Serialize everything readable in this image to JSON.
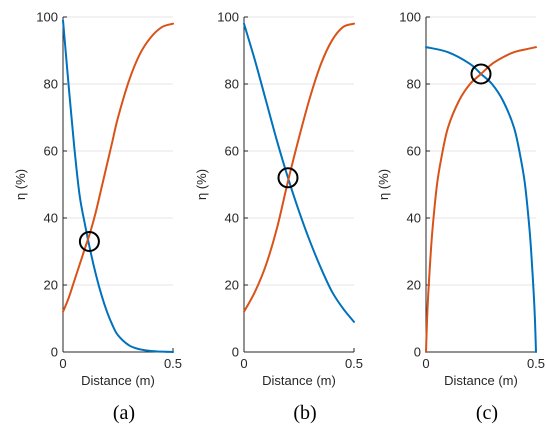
{
  "figure": {
    "colors": {
      "blue": "#0072BD",
      "orange": "#D95319",
      "axis": "#262626",
      "grid": "#E6E6E6",
      "marker": "#000000"
    }
  },
  "chart_data": [
    {
      "type": "line",
      "panel_label": "(a)",
      "xlabel": "Distance (m)",
      "ylabel": "η (%)",
      "xlim": [
        0,
        0.5
      ],
      "ylim": [
        0,
        100
      ],
      "xticks": [
        0,
        0.5
      ],
      "xtick_labels": [
        "0",
        "0.5"
      ],
      "yticks": [
        0,
        20,
        40,
        60,
        80,
        100
      ],
      "ytick_labels": [
        "0",
        "20",
        "40",
        "60",
        "80",
        "100"
      ],
      "grid": "horizontal",
      "series": [
        {
          "color": "#0072BD",
          "x": [
            0,
            0.025,
            0.05,
            0.075,
            0.1,
            0.125,
            0.15,
            0.175,
            0.2,
            0.225,
            0.25,
            0.3,
            0.35,
            0.4,
            0.45,
            0.5
          ],
          "y": [
            99,
            80,
            62,
            47,
            38,
            30,
            23,
            17,
            12,
            8,
            5,
            2,
            0.8,
            0.3,
            0.1,
            0
          ]
        },
        {
          "color": "#D95319",
          "x": [
            0,
            0.025,
            0.05,
            0.075,
            0.1,
            0.125,
            0.15,
            0.175,
            0.2,
            0.225,
            0.25,
            0.3,
            0.35,
            0.4,
            0.45,
            0.5
          ],
          "y": [
            12,
            16,
            21,
            26,
            31,
            36,
            42,
            49,
            56,
            63,
            70,
            81,
            89,
            94,
            97,
            98
          ]
        }
      ],
      "markers": [
        {
          "x": 0.12,
          "y": 33
        }
      ]
    },
    {
      "type": "line",
      "panel_label": "(b)",
      "xlabel": "Distance (m)",
      "ylabel": "η (%)",
      "xlim": [
        0,
        0.5
      ],
      "ylim": [
        0,
        100
      ],
      "xticks": [
        0,
        0.5
      ],
      "xtick_labels": [
        "0",
        "0.5"
      ],
      "yticks": [
        0,
        20,
        40,
        60,
        80,
        100
      ],
      "ytick_labels": [
        "0",
        "20",
        "40",
        "60",
        "80",
        "100"
      ],
      "grid": "horizontal",
      "series": [
        {
          "color": "#0072BD",
          "x": [
            0,
            0.05,
            0.1,
            0.15,
            0.2,
            0.25,
            0.3,
            0.35,
            0.4,
            0.45,
            0.5
          ],
          "y": [
            98,
            87,
            75,
            63,
            52,
            42,
            33,
            25,
            18,
            13,
            9
          ]
        },
        {
          "color": "#D95319",
          "x": [
            0,
            0.05,
            0.1,
            0.15,
            0.2,
            0.25,
            0.3,
            0.35,
            0.4,
            0.45,
            0.5
          ],
          "y": [
            12,
            18,
            26,
            37,
            51,
            64,
            76,
            86,
            93,
            97,
            98
          ]
        }
      ],
      "markers": [
        {
          "x": 0.2,
          "y": 52
        }
      ]
    },
    {
      "type": "line",
      "panel_label": "(c)",
      "xlabel": "Distance (m)",
      "ylabel": "η (%)",
      "xlim": [
        0,
        0.5
      ],
      "ylim": [
        0,
        100
      ],
      "xticks": [
        0,
        0.5
      ],
      "xtick_labels": [
        "0",
        "0.5"
      ],
      "yticks": [
        0,
        20,
        40,
        60,
        80,
        100
      ],
      "ytick_labels": [
        "0",
        "20",
        "40",
        "60",
        "80",
        "100"
      ],
      "grid": "horizontal",
      "series": [
        {
          "color": "#0072BD",
          "x": [
            0,
            0.1,
            0.2,
            0.25,
            0.3,
            0.35,
            0.4,
            0.43,
            0.45,
            0.47,
            0.48,
            0.49,
            0.495,
            0.5
          ],
          "y": [
            91,
            89.5,
            86,
            83,
            80,
            75,
            67,
            58,
            50,
            37,
            28,
            17,
            10,
            0
          ]
        },
        {
          "color": "#D95319",
          "x": [
            0,
            0.005,
            0.01,
            0.02,
            0.03,
            0.05,
            0.07,
            0.1,
            0.15,
            0.2,
            0.25,
            0.3,
            0.35,
            0.4,
            0.45,
            0.5
          ],
          "y": [
            0,
            10,
            17,
            28,
            37,
            50,
            58,
            67,
            75,
            80,
            83,
            86,
            88,
            89.5,
            90.3,
            91
          ]
        }
      ],
      "markers": [
        {
          "x": 0.25,
          "y": 83
        }
      ]
    }
  ]
}
